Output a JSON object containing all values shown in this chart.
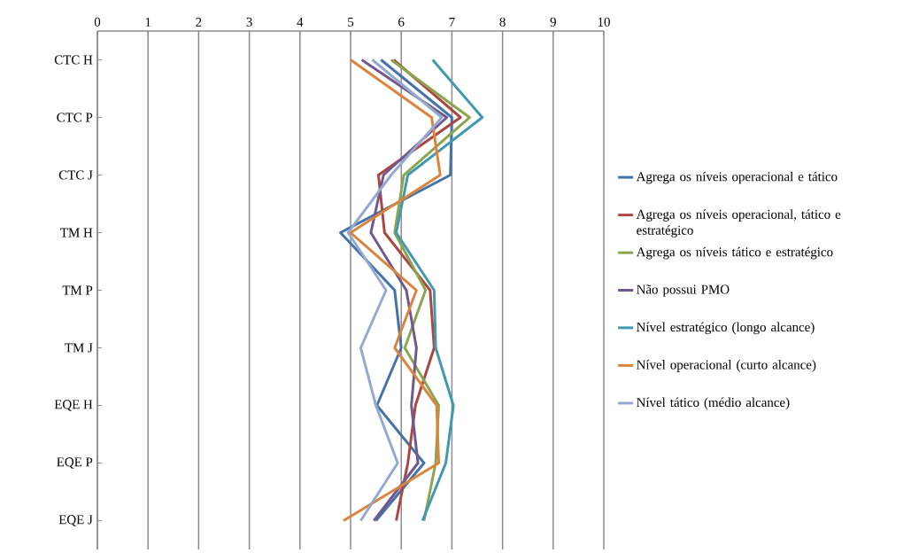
{
  "chart_data": {
    "type": "line",
    "categories": [
      "CTC H",
      "CTC P",
      "CTC J",
      "TM H",
      "TM P",
      "TM J",
      "EQE H",
      "EQE P",
      "EQE J"
    ],
    "orientation": "horizontal",
    "xlim": [
      0,
      10
    ],
    "xticks": [
      0,
      1,
      2,
      3,
      4,
      5,
      6,
      7,
      8,
      9,
      10
    ],
    "grid": "x",
    "legend": "right",
    "series": [
      {
        "name": "Agrega  os níveis operacional e tático",
        "color": "#4572a7",
        "values": [
          5.6,
          7.0,
          6.97,
          4.8,
          5.87,
          6.0,
          5.52,
          6.45,
          5.5
        ]
      },
      {
        "name": "Agrega  os níveis operacional, tático e estratégico",
        "color": "#aa4643",
        "values": [
          5.85,
          7.17,
          5.55,
          5.67,
          6.57,
          6.65,
          6.28,
          6.13,
          5.9
        ]
      },
      {
        "name": "Agrega  os níveis tático e estratégico",
        "color": "#89a54e",
        "values": [
          5.8,
          7.35,
          6.05,
          5.87,
          6.48,
          6.07,
          6.74,
          6.68,
          6.45
        ]
      },
      {
        "name": "Não possui PMO",
        "color": "#71588f",
        "values": [
          5.22,
          6.9,
          5.65,
          5.4,
          6.1,
          6.3,
          6.2,
          6.33,
          5.46
        ]
      },
      {
        "name": "Nível estratégico (longo alcance)",
        "color": "#4198af",
        "values": [
          6.62,
          7.6,
          6.13,
          5.9,
          6.65,
          6.68,
          7.03,
          6.88,
          6.42
        ]
      },
      {
        "name": "Nível operacional (curto alcance)",
        "color": "#db843d",
        "values": [
          5.0,
          6.6,
          6.77,
          5.0,
          6.3,
          5.87,
          6.7,
          6.74,
          4.86
        ]
      },
      {
        "name": "Nível tático (médio alcance)",
        "color": "#93a9cf",
        "values": [
          5.43,
          6.8,
          5.8,
          4.95,
          5.7,
          5.2,
          5.5,
          5.93,
          5.2
        ]
      }
    ]
  }
}
